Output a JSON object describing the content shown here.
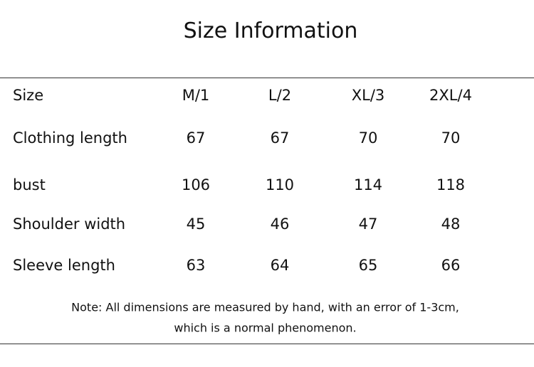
{
  "title": "Size Information",
  "table": {
    "header": [
      "Size",
      "M/1",
      "L/2",
      "XL/3",
      "2XL/4"
    ],
    "rows": [
      [
        "Clothing length",
        67,
        67,
        70,
        70
      ],
      [
        "bust",
        106,
        110,
        114,
        118
      ],
      [
        "Shoulder width",
        45,
        46,
        47,
        48
      ],
      [
        "Sleeve length",
        63,
        64,
        65,
        66
      ]
    ]
  },
  "note": [
    "Note: All dimensions are measured by hand, with an error of 1-3cm,",
    "which is a normal phenomenon."
  ]
}
